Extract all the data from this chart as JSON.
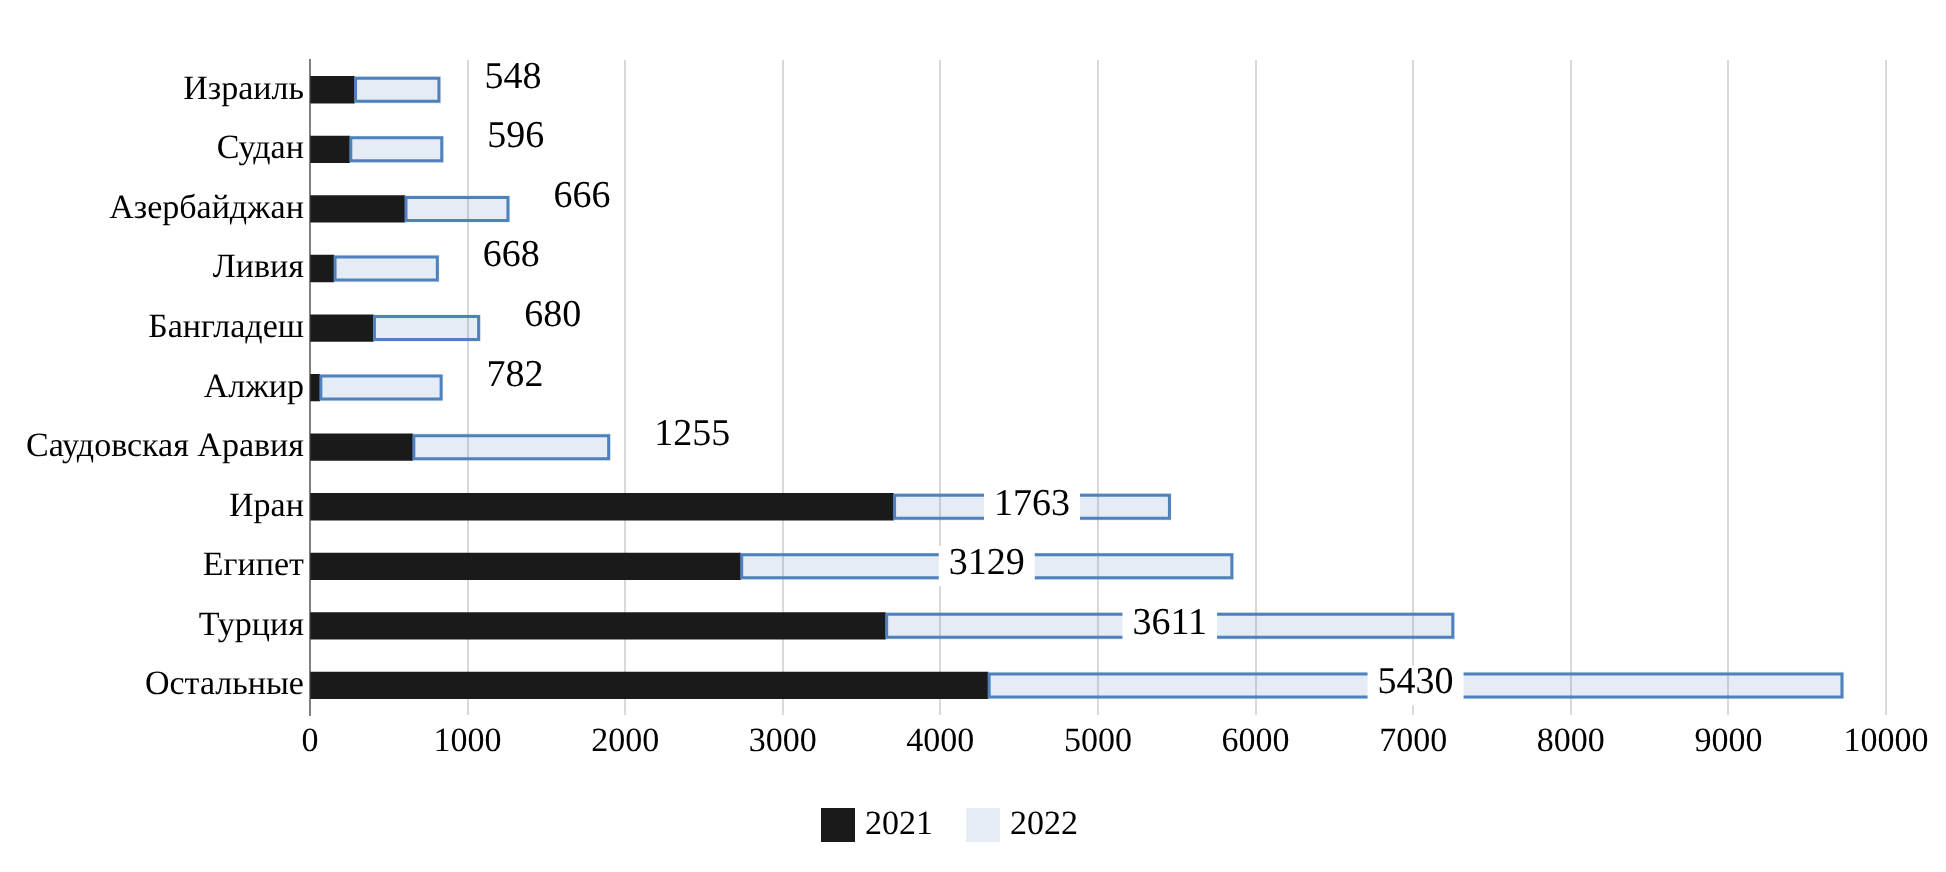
{
  "chart_data": {
    "type": "bar",
    "orientation": "horizontal",
    "stacked": true,
    "categories": [
      "Израиль",
      "Судан",
      "Азербайджан",
      "Ливия",
      "Бангладеш",
      "Алжир",
      "Саудовская Аравия",
      "Иран",
      "Египет",
      "Турция",
      "Остальные"
    ],
    "series": [
      {
        "name": "2021",
        "color": "#1a1a1a",
        "values": [
          280,
          250,
          600,
          150,
          400,
          60,
          650,
          3700,
          2730,
          3650,
          4300
        ]
      },
      {
        "name": "2022",
        "color": "#4f81bd",
        "values": [
          548,
          596,
          666,
          668,
          680,
          782,
          1255,
          1763,
          3129,
          3611,
          5430
        ],
        "value_labels": [
          "548",
          "596",
          "666",
          "668",
          "680",
          "782",
          "1255",
          "1763",
          "3129",
          "3611",
          "5430"
        ]
      }
    ],
    "xlim": [
      0,
      10000
    ],
    "xticks": [
      0,
      1000,
      2000,
      3000,
      4000,
      5000,
      6000,
      7000,
      8000,
      9000,
      10000
    ],
    "grid": "x",
    "legend": "bottom"
  }
}
